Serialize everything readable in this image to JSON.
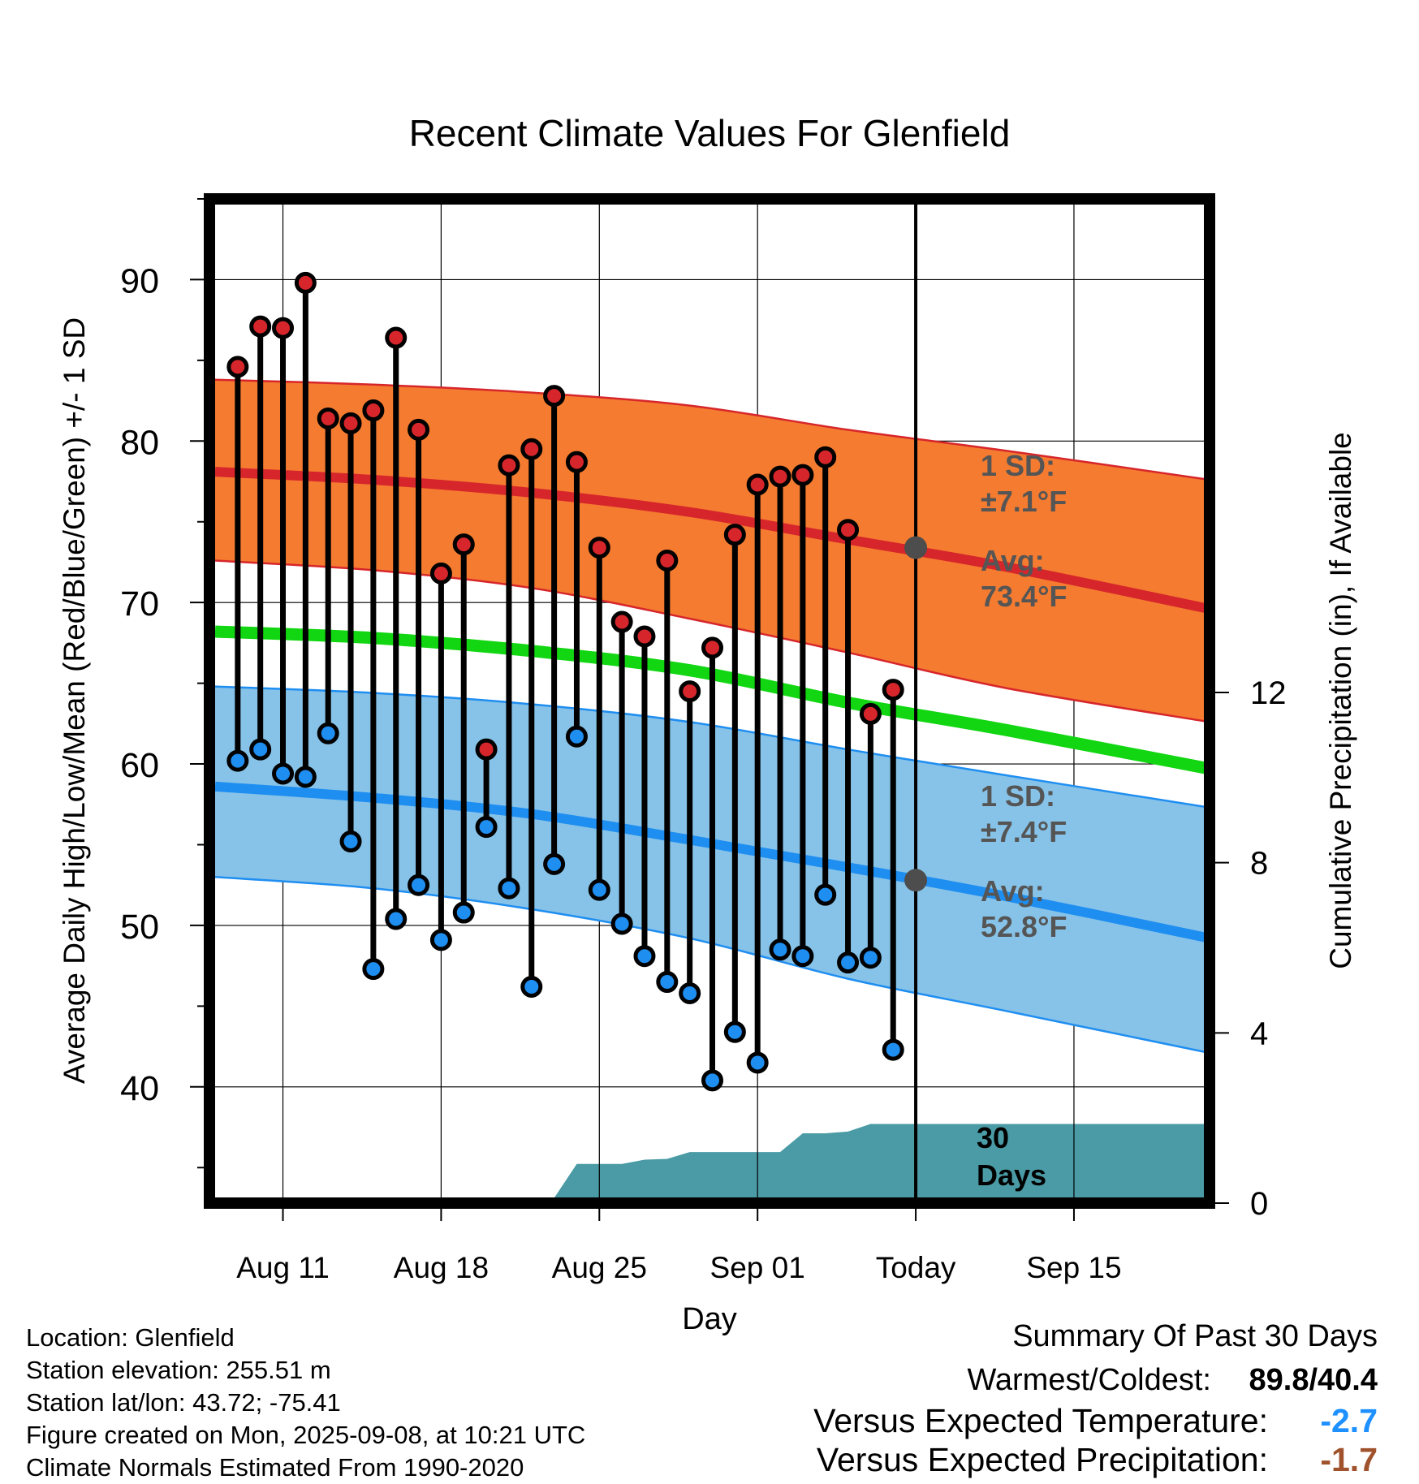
{
  "chart_data": {
    "type": "line",
    "title": "Recent Climate Values For Glenfield",
    "xlabel": "Day",
    "ylabel": "Average Daily High/Low/Mean (Red/Blue/Green) +/- 1 SD",
    "y2label": "Cumulative Precipitation (in), If Available",
    "x_range": [
      "2025-08-08",
      "2025-09-21"
    ],
    "ylim": [
      32.8,
      95
    ],
    "y2lim": [
      0,
      23.6
    ],
    "grid": true,
    "x_ticks": [
      {
        "date": "2025-08-11",
        "label": "Aug 11"
      },
      {
        "date": "2025-08-18",
        "label": "Aug 18"
      },
      {
        "date": "2025-08-25",
        "label": "Aug 25"
      },
      {
        "date": "2025-09-01",
        "label": "Sep 01"
      },
      {
        "date": "2025-09-08",
        "label": "Today"
      },
      {
        "date": "2025-09-15",
        "label": "Sep 15"
      }
    ],
    "y_ticks": [
      "40",
      "50",
      "60",
      "70",
      "80",
      "90"
    ],
    "y2_ticks": [
      "0",
      "4",
      "8",
      "12"
    ],
    "today": "2025-09-08",
    "colors": {
      "high_band": "#f47b30",
      "high_line": "#d7262b",
      "mean_line": "#11d611",
      "low_band": "#87c3e8",
      "low_line": "#1f8ef1",
      "precip": "#4a9ba5",
      "today_marker": "#4d4d4d",
      "annotation": "#555555",
      "temp_departure": "#1e90ff",
      "precip_departure": "#a0522d"
    },
    "normals": {
      "dates": [
        "2025-08-08",
        "2025-08-15",
        "2025-08-22",
        "2025-08-29",
        "2025-09-05",
        "2025-09-12",
        "2025-09-21"
      ],
      "high_avg": [
        78.1,
        77.6,
        76.8,
        75.6,
        73.9,
        72.2,
        69.6
      ],
      "high_upper": [
        83.8,
        83.5,
        83.0,
        82.2,
        80.7,
        79.4,
        77.6
      ],
      "high_lower": [
        72.6,
        72.0,
        70.9,
        69.0,
        66.9,
        64.7,
        62.6
      ],
      "mean": [
        68.2,
        67.8,
        67.0,
        65.8,
        63.8,
        62.1,
        59.7
      ],
      "low_avg": [
        58.6,
        57.9,
        56.9,
        55.3,
        53.6,
        51.8,
        49.2
      ],
      "low_upper": [
        64.8,
        64.4,
        63.7,
        62.6,
        60.9,
        59.3,
        57.3
      ],
      "low_lower": [
        53.0,
        52.3,
        51.0,
        49.2,
        46.7,
        44.7,
        42.1
      ]
    },
    "series": [
      {
        "name": "High",
        "values": [
          84.6,
          87.1,
          87.0,
          89.8,
          81.4,
          81.1,
          81.9,
          86.4,
          80.7,
          71.8,
          73.6,
          60.9,
          78.5,
          79.5,
          82.8,
          78.7,
          73.4,
          68.8,
          67.9,
          72.6,
          64.5,
          67.2,
          74.2,
          77.3,
          77.8,
          77.9,
          79.0,
          74.5,
          63.1,
          64.6
        ]
      },
      {
        "name": "Low",
        "values": [
          60.2,
          60.9,
          59.4,
          59.2,
          61.9,
          55.2,
          47.3,
          50.4,
          52.5,
          49.1,
          50.8,
          56.1,
          52.3,
          46.2,
          53.8,
          61.7,
          52.2,
          50.1,
          48.1,
          46.5,
          45.8,
          40.4,
          43.4,
          41.5,
          48.5,
          48.1,
          51.9,
          47.7,
          48.0,
          42.3
        ]
      }
    ],
    "x": [
      "2025-08-09",
      "2025-08-10",
      "2025-08-11",
      "2025-08-12",
      "2025-08-13",
      "2025-08-14",
      "2025-08-15",
      "2025-08-16",
      "2025-08-17",
      "2025-08-18",
      "2025-08-19",
      "2025-08-20",
      "2025-08-21",
      "2025-08-22",
      "2025-08-23",
      "2025-08-24",
      "2025-08-25",
      "2025-08-26",
      "2025-08-27",
      "2025-08-28",
      "2025-08-29",
      "2025-08-30",
      "2025-08-31",
      "2025-09-01",
      "2025-09-02",
      "2025-09-03",
      "2025-09-04",
      "2025-09-05",
      "2025-09-06",
      "2025-09-07"
    ],
    "precip_cumulative": {
      "dates": [
        "2025-08-08",
        "2025-08-19",
        "2025-08-20",
        "2025-08-23",
        "2025-08-24",
        "2025-08-26",
        "2025-08-27",
        "2025-08-28",
        "2025-08-29",
        "2025-09-02",
        "2025-09-03",
        "2025-09-04",
        "2025-09-05",
        "2025-09-06",
        "2025-09-21"
      ],
      "values": [
        0,
        0,
        0.12,
        0.12,
        0.92,
        0.92,
        1.02,
        1.04,
        1.2,
        1.2,
        1.64,
        1.64,
        1.68,
        1.86,
        1.86
      ]
    },
    "annotations": {
      "high_sd_label": "1 SD:",
      "high_sd_value": "±7.1°F",
      "high_avg_label": "Avg:",
      "high_avg_value": "73.4°F",
      "low_sd_label": "1 SD:",
      "low_sd_value": "±7.4°F",
      "low_avg_label": "Avg:",
      "low_avg_value": "52.8°F",
      "today_high_avg": 73.4,
      "today_low_avg": 52.8,
      "precip_period_line1": "30",
      "precip_period_line2": "Days"
    }
  },
  "station_info": {
    "location": "Location: Glenfield",
    "elevation": "Station elevation: 255.51 m",
    "latlon": "Station lat/lon: 43.72; -75.41",
    "created": "Figure created on Mon, 2025-09-08, at 10:21 UTC",
    "normals": "Climate Normals Estimated From 1990-2020"
  },
  "summary": {
    "title": "Summary Of Past 30 Days",
    "warmest_coldest_label": "Warmest/Coldest:",
    "warmest": "89.8",
    "separator": "/",
    "coldest": "40.4",
    "temp_label": "Versus Expected Temperature:",
    "temp_value": "-2.7",
    "precip_label": "Versus Expected Precipitation:",
    "precip_value": "-1.7"
  }
}
